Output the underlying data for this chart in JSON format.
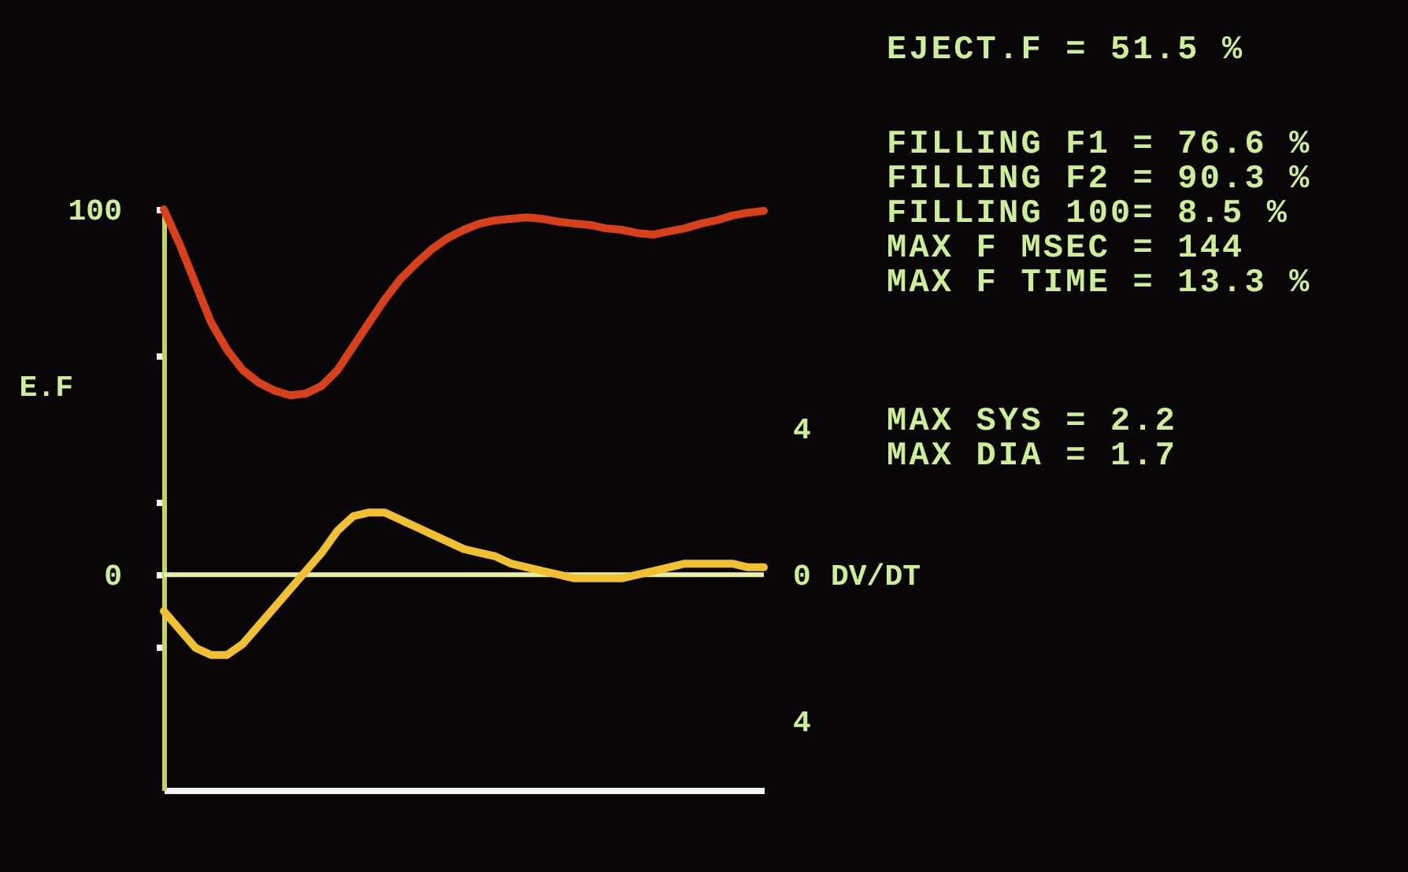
{
  "chart_data": {
    "type": "line",
    "ylabel": "E.F",
    "y2label": "DV/DT",
    "categories": [
      null,
      null,
      null,
      null,
      null,
      null,
      null,
      null,
      null,
      null,
      null,
      null,
      null,
      null,
      null,
      null,
      null,
      null,
      null,
      null,
      null,
      null,
      null,
      null,
      null,
      null,
      null,
      null,
      null,
      null,
      null,
      null,
      null,
      null,
      null,
      null,
      null,
      null,
      null
    ],
    "series": [
      {
        "color": "#d8401c",
        "values": [
          100,
          90.5,
          79.7,
          69,
          61.6,
          56,
          52.6,
          50.4,
          49.1,
          49.6,
          51.7,
          56,
          62.5,
          69,
          75.4,
          81,
          85.3,
          89.2,
          92.2,
          94.4,
          96.1,
          97,
          97.4,
          97.8,
          97.4,
          96.6,
          96.1,
          95.7,
          94.8,
          94.4,
          93.5,
          93.1,
          94,
          94.8,
          96.1,
          97,
          98.3,
          99.1,
          99.6
        ]
      },
      {
        "color": "#f0c030",
        "axis": "y2",
        "values": [
          -1,
          -1.5,
          -2,
          -2.2,
          -2.2,
          -1.9,
          -1.4,
          -0.9,
          -0.4,
          0.1,
          0.6,
          1.2,
          1.6,
          1.7,
          1.7,
          1.5,
          1.3,
          1.1,
          0.9,
          0.7,
          0.6,
          0.5,
          0.3,
          0.2,
          0.1,
          0,
          -0.1,
          -0.1,
          -0.1,
          -0.1,
          0,
          0.1,
          0.2,
          0.3,
          0.3,
          0.3,
          0.3,
          0.2,
          0.2
        ]
      }
    ],
    "ylim": [
      -59,
      100
    ],
    "yticks": [
      {
        "value": -20,
        "label": null
      },
      0,
      {
        "value": 20,
        "label": null
      },
      {
        "value": 60,
        "label": null
      },
      100
    ],
    "y2lim": [
      -5.9,
      10
    ],
    "y2ticks": [
      {
        "value": -4,
        "label": "4"
      },
      0,
      4
    ],
    "ref_lines": [
      {
        "axis": "y",
        "value": 0,
        "color": "#e6f0a8"
      }
    ],
    "annotations": [
      "EJECT.F = 51.5 %",
      "FILLING F1 = 76.6 %",
      "FILLING F2 = 90.3 %",
      "FILLING 100= 8.5 %",
      "MAX F MSEC = 144",
      "MAX F TIME = 13.3 %",
      "MAX SYS = 2.2",
      "MAX DIA = 1.7"
    ]
  }
}
